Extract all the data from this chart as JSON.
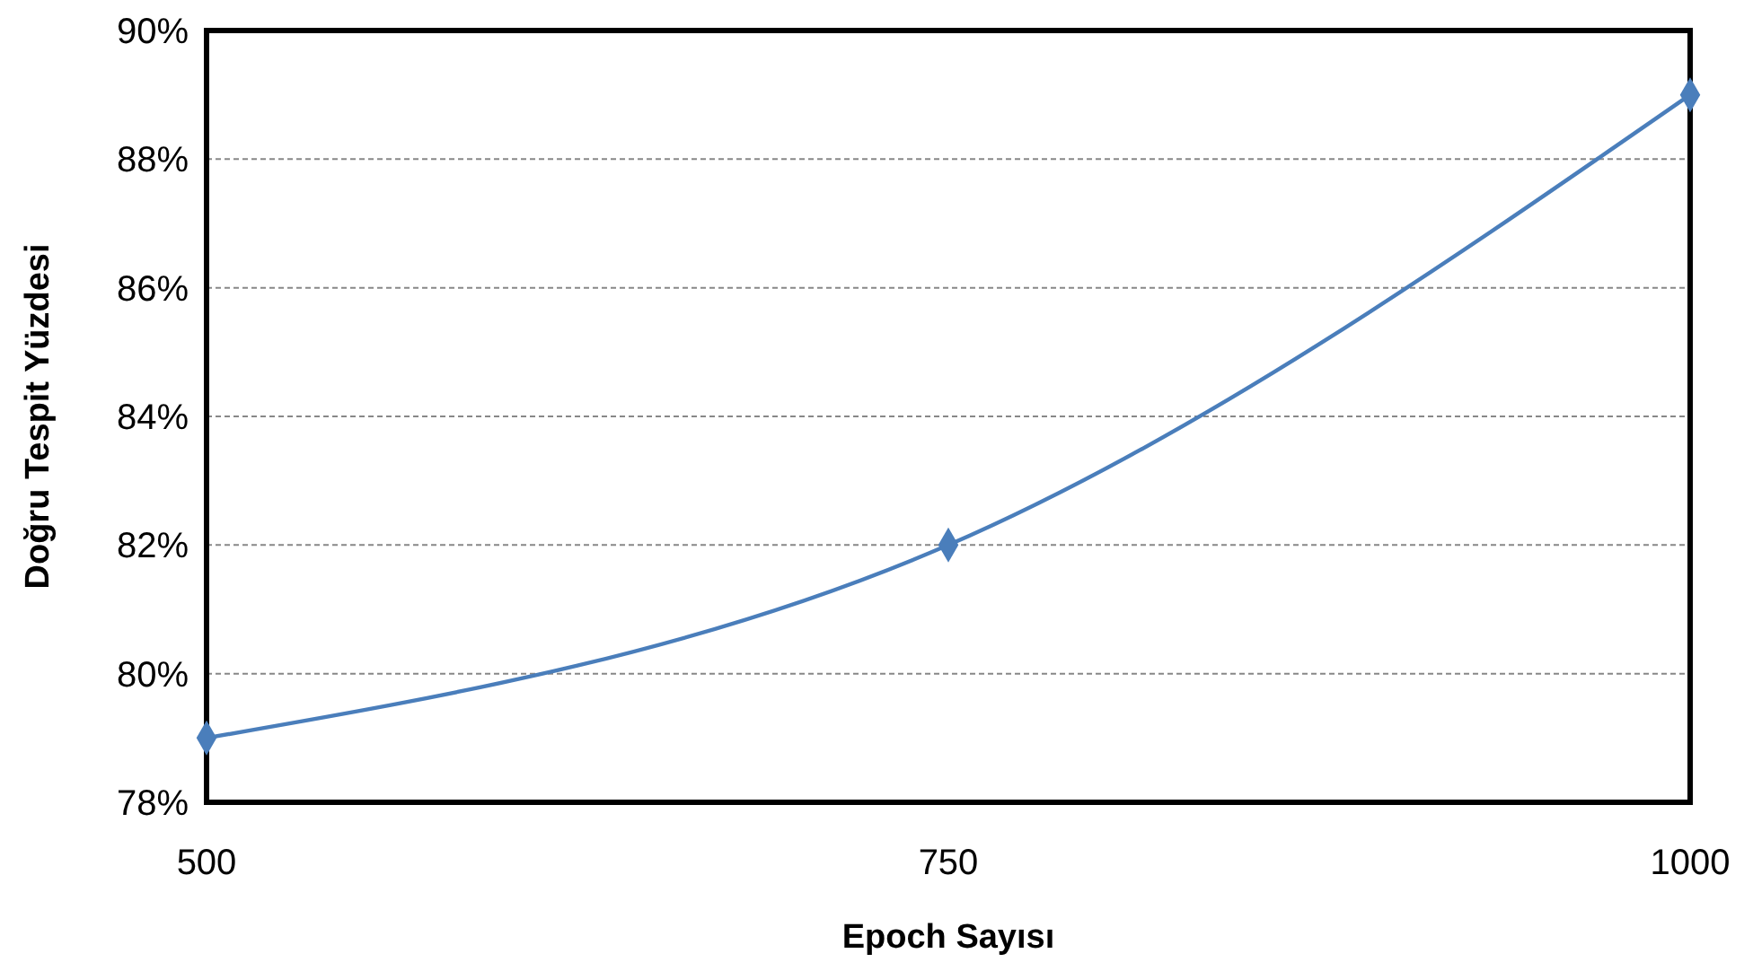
{
  "chart_data": {
    "type": "line",
    "xlabel": "Epoch Sayısı",
    "ylabel": "Doğru Tespit Yüzdesi",
    "x": [
      500,
      750,
      1000
    ],
    "series": [
      {
        "color": "#4a7ebb",
        "values": [
          79,
          82,
          89
        ]
      }
    ],
    "xlim": [
      500,
      1000
    ],
    "xticks": [
      500,
      750,
      1000
    ],
    "ylim": [
      78,
      90
    ],
    "yticks": [
      {
        "value": 78,
        "label": "78%"
      },
      {
        "value": 80,
        "label": "80%"
      },
      {
        "value": 82,
        "label": "82%"
      },
      {
        "value": 84,
        "label": "84%"
      },
      {
        "value": 86,
        "label": "86%"
      },
      {
        "value": 88,
        "label": "88%"
      },
      {
        "value": 90,
        "label": "90%"
      }
    ],
    "grid": "y",
    "marker": "diamond",
    "line_style": "solid"
  }
}
